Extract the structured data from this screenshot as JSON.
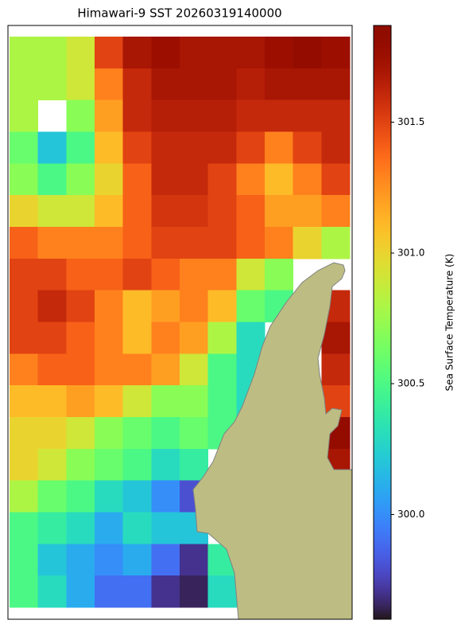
{
  "chart_data": {
    "type": "heatmap",
    "title": "Himawari-9 SST 20260319140000",
    "colorbar_label": "Sea Surface Temperature (K)",
    "colormap": "turbo",
    "clim": [
      299.6,
      301.87
    ],
    "cticks": [
      {
        "value": 300,
        "label": "300.0"
      },
      300.5,
      {
        "value": 301,
        "label": "301.0"
      },
      301.5
    ],
    "z": [
      [
        300.8,
        300.8,
        300.9,
        301.5,
        301.7,
        301.75,
        301.7,
        301.7,
        301.7,
        301.75,
        301.8,
        301.75
      ],
      [
        300.8,
        300.8,
        300.9,
        301.3,
        301.6,
        301.7,
        301.7,
        301.7,
        301.65,
        301.7,
        301.7,
        301.7
      ],
      [
        300.8,
        null,
        300.7,
        301.2,
        301.6,
        301.65,
        301.65,
        301.65,
        301.6,
        301.6,
        301.6,
        301.6
      ],
      [
        300.6,
        300.2,
        300.5,
        301.1,
        301.5,
        301.6,
        301.6,
        301.6,
        301.5,
        301.3,
        301.5,
        301.6
      ],
      [
        300.7,
        300.5,
        300.7,
        301.0,
        301.4,
        301.6,
        301.6,
        301.5,
        301.3,
        301.1,
        301.3,
        301.5
      ],
      [
        301.0,
        300.9,
        300.9,
        301.1,
        301.4,
        301.55,
        301.55,
        301.5,
        301.4,
        301.2,
        301.2,
        301.3
      ],
      [
        301.4,
        301.3,
        301.3,
        301.3,
        301.4,
        301.5,
        301.5,
        301.5,
        301.4,
        301.3,
        301.0,
        300.8
      ],
      [
        301.5,
        301.5,
        301.4,
        301.4,
        301.5,
        301.4,
        301.3,
        301.3,
        300.9,
        300.7,
        null,
        null
      ],
      [
        301.5,
        301.6,
        301.5,
        301.3,
        301.1,
        301.2,
        301.3,
        301.1,
        300.6,
        300.5,
        null,
        301.6
      ],
      [
        301.5,
        301.5,
        301.4,
        301.3,
        301.1,
        301.3,
        301.2,
        300.8,
        300.3,
        null,
        null,
        301.7
      ],
      [
        301.3,
        301.4,
        301.4,
        301.3,
        301.3,
        301.2,
        300.9,
        300.5,
        300.3,
        null,
        null,
        301.6
      ],
      [
        301.1,
        301.1,
        301.2,
        301.1,
        300.9,
        300.7,
        300.7,
        300.5,
        300.3,
        null,
        null,
        301.5
      ],
      [
        301.0,
        301.0,
        300.9,
        300.7,
        300.6,
        300.5,
        300.6,
        300.5,
        null,
        null,
        null,
        301.8
      ],
      [
        301.0,
        300.9,
        300.7,
        300.6,
        300.5,
        300.3,
        300.4,
        null,
        null,
        null,
        null,
        301.7
      ],
      [
        300.8,
        300.6,
        300.5,
        300.3,
        300.2,
        300.0,
        299.8,
        null,
        null,
        null,
        null,
        null
      ],
      [
        300.5,
        300.4,
        300.3,
        300.1,
        300.3,
        300.2,
        300.2,
        null,
        null,
        null,
        null,
        null
      ],
      [
        300.5,
        300.2,
        300.1,
        300.0,
        300.1,
        299.9,
        299.7,
        300.4,
        null,
        null,
        null,
        null
      ],
      [
        300.5,
        300.3,
        300.1,
        299.9,
        299.9,
        299.7,
        299.65,
        300.3,
        null,
        null,
        null,
        null
      ]
    ]
  }
}
